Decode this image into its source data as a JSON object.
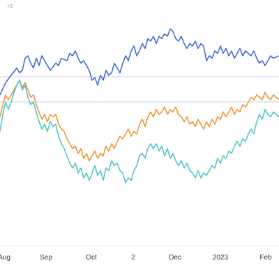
{
  "chart_data": {
    "type": "line",
    "title": "",
    "xlabel": "",
    "ylabel": "",
    "corner_label": "+3",
    "x_tick_labels": [
      "Aug",
      "Sep",
      "Oct",
      "2",
      "Dec",
      "2023",
      "Feb"
    ],
    "grid": true,
    "legend": "none",
    "x_range": [
      0,
      100
    ],
    "y_range": [
      0,
      100
    ],
    "series": [
      {
        "color": "#3b64d8",
        "values": [
          [
            0,
            64
          ],
          [
            2,
            69
          ],
          [
            4,
            72
          ],
          [
            6,
            75
          ],
          [
            7,
            73
          ],
          [
            8,
            74
          ],
          [
            9,
            79
          ],
          [
            10,
            80
          ],
          [
            11,
            77
          ],
          [
            12,
            75
          ],
          [
            13,
            79
          ],
          [
            14,
            76
          ],
          [
            15,
            80
          ],
          [
            16,
            78
          ],
          [
            18,
            74
          ],
          [
            20,
            77
          ],
          [
            21,
            76
          ],
          [
            22,
            79
          ],
          [
            24,
            78
          ],
          [
            25,
            81
          ],
          [
            26,
            80
          ],
          [
            27,
            82
          ],
          [
            28,
            79
          ],
          [
            29,
            77
          ],
          [
            30,
            78
          ],
          [
            31,
            76
          ],
          [
            32,
            74
          ],
          [
            33,
            70
          ],
          [
            34,
            71
          ],
          [
            35,
            68
          ],
          [
            36,
            72
          ],
          [
            37,
            70
          ],
          [
            38,
            74
          ],
          [
            39,
            72
          ],
          [
            40,
            73
          ],
          [
            41,
            77
          ],
          [
            42,
            75
          ],
          [
            43,
            73
          ],
          [
            44,
            77
          ],
          [
            45,
            80
          ],
          [
            46,
            78
          ],
          [
            47,
            82
          ],
          [
            48,
            84
          ],
          [
            49,
            80
          ],
          [
            50,
            82
          ],
          [
            51,
            85
          ],
          [
            52,
            83
          ],
          [
            53,
            87
          ],
          [
            54,
            86
          ],
          [
            55,
            88
          ],
          [
            56,
            85
          ],
          [
            57,
            88
          ],
          [
            58,
            87
          ],
          [
            59,
            89
          ],
          [
            60,
            88
          ],
          [
            61,
            91
          ],
          [
            62,
            90
          ],
          [
            63,
            87
          ],
          [
            64,
            86
          ],
          [
            65,
            88
          ],
          [
            66,
            85
          ],
          [
            67,
            83
          ],
          [
            68,
            85
          ],
          [
            69,
            84
          ],
          [
            70,
            86
          ],
          [
            71,
            83
          ],
          [
            72,
            85
          ],
          [
            73,
            84
          ],
          [
            74,
            78
          ],
          [
            75,
            80
          ],
          [
            76,
            79
          ],
          [
            77,
            82
          ],
          [
            78,
            81
          ],
          [
            79,
            84
          ],
          [
            80,
            81
          ],
          [
            81,
            83
          ],
          [
            82,
            80
          ],
          [
            83,
            82
          ],
          [
            84,
            79
          ],
          [
            85,
            81
          ],
          [
            86,
            83
          ],
          [
            87,
            80
          ],
          [
            88,
            82
          ],
          [
            89,
            81
          ],
          [
            90,
            80
          ],
          [
            91,
            82
          ],
          [
            92,
            79
          ],
          [
            93,
            77
          ],
          [
            94,
            78
          ],
          [
            95,
            76
          ],
          [
            96,
            78
          ],
          [
            97,
            80
          ],
          [
            98,
            79
          ],
          [
            100,
            80
          ]
        ]
      },
      {
        "color": "#f0902a",
        "values": [
          [
            0,
            55
          ],
          [
            1,
            60
          ],
          [
            2,
            64
          ],
          [
            3,
            62
          ],
          [
            4,
            64
          ],
          [
            5,
            66
          ],
          [
            6,
            68
          ],
          [
            7,
            70
          ],
          [
            8,
            67
          ],
          [
            9,
            69
          ],
          [
            10,
            66
          ],
          [
            11,
            63
          ],
          [
            12,
            64
          ],
          [
            13,
            60
          ],
          [
            14,
            57
          ],
          [
            15,
            54
          ],
          [
            16,
            56
          ],
          [
            17,
            53
          ],
          [
            18,
            56
          ],
          [
            19,
            55
          ],
          [
            20,
            56
          ],
          [
            21,
            52
          ],
          [
            22,
            50
          ],
          [
            23,
            49
          ],
          [
            24,
            46
          ],
          [
            25,
            44
          ],
          [
            26,
            42
          ],
          [
            27,
            43
          ],
          [
            28,
            40
          ],
          [
            29,
            42
          ],
          [
            30,
            38
          ],
          [
            31,
            40
          ],
          [
            32,
            37
          ],
          [
            33,
            39
          ],
          [
            34,
            41
          ],
          [
            35,
            38
          ],
          [
            36,
            40
          ],
          [
            37,
            39
          ],
          [
            38,
            43
          ],
          [
            39,
            41
          ],
          [
            40,
            44
          ],
          [
            41,
            42
          ],
          [
            42,
            45
          ],
          [
            43,
            47
          ],
          [
            44,
            46
          ],
          [
            45,
            48
          ],
          [
            46,
            50
          ],
          [
            47,
            47
          ],
          [
            48,
            49
          ],
          [
            49,
            48
          ],
          [
            50,
            52
          ],
          [
            51,
            54
          ],
          [
            52,
            51
          ],
          [
            53,
            55
          ],
          [
            54,
            57
          ],
          [
            55,
            55
          ],
          [
            56,
            58
          ],
          [
            57,
            56
          ],
          [
            58,
            57
          ],
          [
            59,
            59
          ],
          [
            60,
            56
          ],
          [
            61,
            58
          ],
          [
            62,
            57
          ],
          [
            63,
            59
          ],
          [
            64,
            56
          ],
          [
            65,
            55
          ],
          [
            66,
            53
          ],
          [
            67,
            55
          ],
          [
            68,
            52
          ],
          [
            69,
            53
          ],
          [
            70,
            51
          ],
          [
            71,
            54
          ],
          [
            72,
            52
          ],
          [
            73,
            50
          ],
          [
            74,
            53
          ],
          [
            75,
            51
          ],
          [
            76,
            54
          ],
          [
            77,
            52
          ],
          [
            78,
            55
          ],
          [
            79,
            54
          ],
          [
            80,
            57
          ],
          [
            81,
            55
          ],
          [
            82,
            57
          ],
          [
            83,
            59
          ],
          [
            84,
            56
          ],
          [
            85,
            58
          ],
          [
            86,
            57
          ],
          [
            87,
            60
          ],
          [
            88,
            59
          ],
          [
            89,
            61
          ],
          [
            90,
            63
          ],
          [
            91,
            62
          ],
          [
            92,
            64
          ],
          [
            93,
            63
          ],
          [
            94,
            62
          ],
          [
            95,
            65
          ],
          [
            96,
            63
          ],
          [
            97,
            62
          ],
          [
            98,
            64
          ],
          [
            99,
            63
          ],
          [
            100,
            62
          ]
        ]
      },
      {
        "color": "#48c2cc",
        "values": [
          [
            0,
            49
          ],
          [
            1,
            56
          ],
          [
            2,
            61
          ],
          [
            3,
            58
          ],
          [
            4,
            61
          ],
          [
            5,
            65
          ],
          [
            6,
            68
          ],
          [
            7,
            70
          ],
          [
            8,
            66
          ],
          [
            9,
            68
          ],
          [
            10,
            63
          ],
          [
            11,
            60
          ],
          [
            12,
            61
          ],
          [
            13,
            57
          ],
          [
            14,
            53
          ],
          [
            15,
            50
          ],
          [
            16,
            52
          ],
          [
            17,
            49
          ],
          [
            18,
            53
          ],
          [
            19,
            51
          ],
          [
            20,
            52
          ],
          [
            21,
            47
          ],
          [
            22,
            44
          ],
          [
            23,
            42
          ],
          [
            24,
            39
          ],
          [
            25,
            36
          ],
          [
            26,
            34
          ],
          [
            27,
            36
          ],
          [
            28,
            32
          ],
          [
            29,
            34
          ],
          [
            30,
            30
          ],
          [
            31,
            32
          ],
          [
            32,
            29
          ],
          [
            33,
            32
          ],
          [
            34,
            35
          ],
          [
            35,
            31
          ],
          [
            36,
            33
          ],
          [
            37,
            29
          ],
          [
            38,
            34
          ],
          [
            39,
            33
          ],
          [
            40,
            37
          ],
          [
            41,
            35
          ],
          [
            42,
            36
          ],
          [
            43,
            33
          ],
          [
            44,
            32
          ],
          [
            45,
            28
          ],
          [
            46,
            30
          ],
          [
            47,
            29
          ],
          [
            48,
            33
          ],
          [
            49,
            35
          ],
          [
            50,
            39
          ],
          [
            51,
            40
          ],
          [
            52,
            38
          ],
          [
            53,
            42
          ],
          [
            54,
            44
          ],
          [
            55,
            42
          ],
          [
            56,
            44
          ],
          [
            57,
            41
          ],
          [
            58,
            43
          ],
          [
            59,
            39
          ],
          [
            60,
            42
          ],
          [
            61,
            38
          ],
          [
            62,
            40
          ],
          [
            63,
            37
          ],
          [
            64,
            35
          ],
          [
            65,
            37
          ],
          [
            66,
            34
          ],
          [
            67,
            36
          ],
          [
            68,
            33
          ],
          [
            69,
            32
          ],
          [
            70,
            30
          ],
          [
            71,
            33
          ],
          [
            72,
            30
          ],
          [
            73,
            32
          ],
          [
            74,
            31
          ],
          [
            75,
            33
          ],
          [
            76,
            35
          ],
          [
            77,
            34
          ],
          [
            78,
            38
          ],
          [
            79,
            36
          ],
          [
            80,
            39
          ],
          [
            81,
            38
          ],
          [
            82,
            41
          ],
          [
            83,
            40
          ],
          [
            84,
            43
          ],
          [
            85,
            45
          ],
          [
            86,
            43
          ],
          [
            87,
            46
          ],
          [
            88,
            45
          ],
          [
            89,
            48
          ],
          [
            90,
            50
          ],
          [
            91,
            48
          ],
          [
            92,
            53
          ],
          [
            93,
            56
          ],
          [
            94,
            54
          ],
          [
            95,
            58
          ],
          [
            96,
            56
          ],
          [
            97,
            55
          ],
          [
            98,
            57
          ],
          [
            99,
            56
          ],
          [
            100,
            55
          ]
        ]
      }
    ]
  }
}
